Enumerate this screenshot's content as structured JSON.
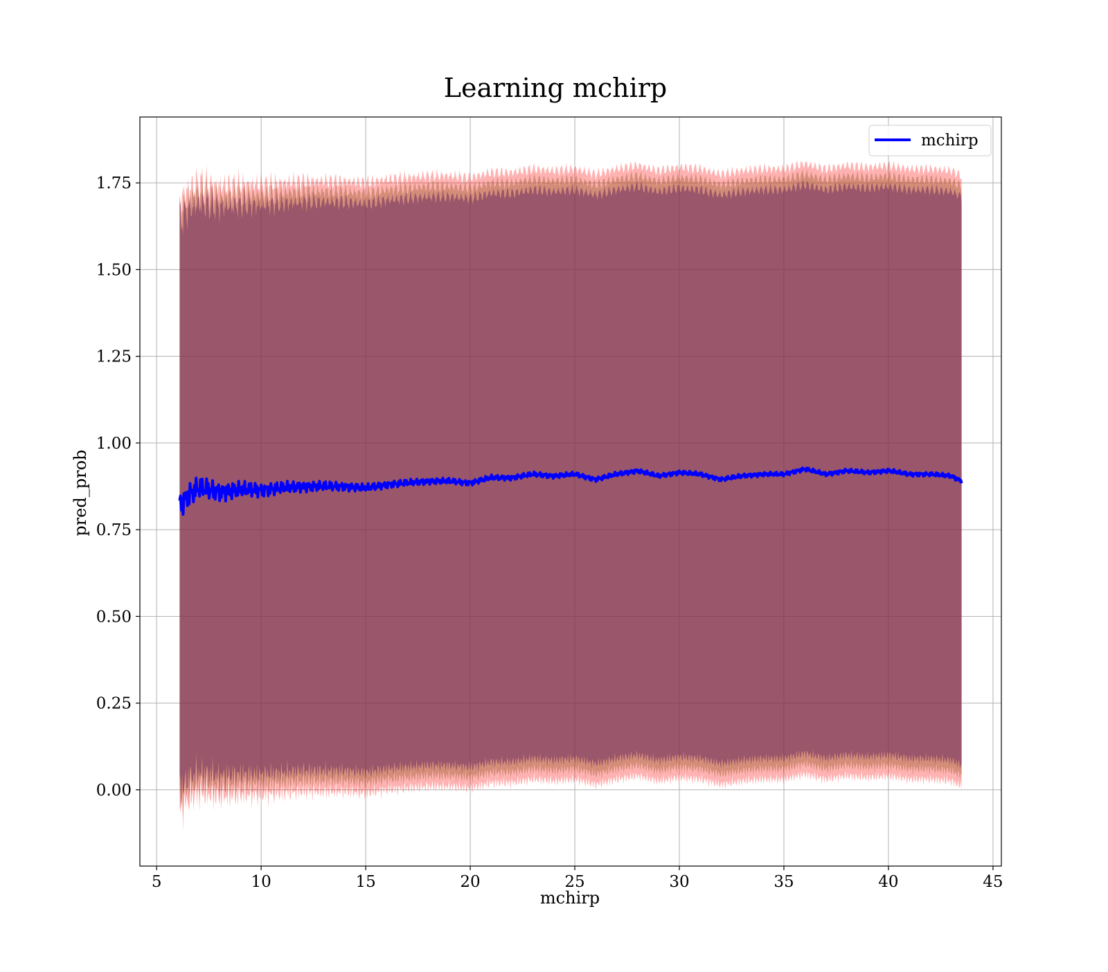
{
  "chart_data": {
    "type": "area",
    "title": "Learning mchirp",
    "xlabel": "mchirp",
    "ylabel": "pred_prob",
    "xlim": [
      4.2,
      45.4
    ],
    "ylim": [
      -0.22,
      1.94
    ],
    "xticks": [
      5,
      10,
      15,
      20,
      25,
      30,
      35,
      40,
      45
    ],
    "xtick_labels": [
      "5",
      "10",
      "15",
      "20",
      "25",
      "30",
      "35",
      "40",
      "45"
    ],
    "yticks": [
      0.0,
      0.25,
      0.5,
      0.75,
      1.0,
      1.25,
      1.5,
      1.75
    ],
    "ytick_labels": [
      "0.00",
      "0.25",
      "0.50",
      "0.75",
      "1.00",
      "1.25",
      "1.50",
      "1.75"
    ],
    "grid": true,
    "legend": {
      "position": "top-right",
      "entries": [
        "mchirp"
      ]
    },
    "colors": {
      "line": "#0000ff",
      "band_outer": "#ff0000",
      "band_mid": "#a06030",
      "band_inner": "#6a2a60"
    },
    "x_start": 6.1,
    "x_end": 43.5,
    "series": [
      {
        "name": "mchirp",
        "x": [
          6.1,
          6.5,
          7,
          7.5,
          8,
          9,
          10,
          11,
          12,
          13,
          14,
          15,
          16,
          17,
          18,
          19,
          20,
          21,
          22,
          23,
          24,
          25,
          26,
          27,
          28,
          29,
          30,
          31,
          32,
          33,
          34,
          35,
          36,
          37,
          38,
          39,
          40,
          41,
          42,
          43,
          43.5
        ],
        "y": [
          0.82,
          0.85,
          0.87,
          0.865,
          0.86,
          0.865,
          0.865,
          0.87,
          0.875,
          0.875,
          0.875,
          0.87,
          0.88,
          0.885,
          0.89,
          0.89,
          0.885,
          0.9,
          0.9,
          0.91,
          0.905,
          0.91,
          0.895,
          0.91,
          0.92,
          0.905,
          0.915,
          0.91,
          0.895,
          0.905,
          0.91,
          0.91,
          0.925,
          0.91,
          0.92,
          0.915,
          0.92,
          0.91,
          0.91,
          0.905,
          0.89
        ]
      }
    ],
    "bands": [
      {
        "offset_lower": -0.88,
        "offset_upper": 0.88,
        "color": "#ff0000",
        "opacity": 0.3
      },
      {
        "offset_lower": -0.85,
        "offset_upper": 0.85,
        "color": "#a06030",
        "opacity": 0.45
      },
      {
        "offset_lower": -0.82,
        "offset_upper": 0.82,
        "color": "#6a2a60",
        "opacity": 0.55
      }
    ]
  }
}
